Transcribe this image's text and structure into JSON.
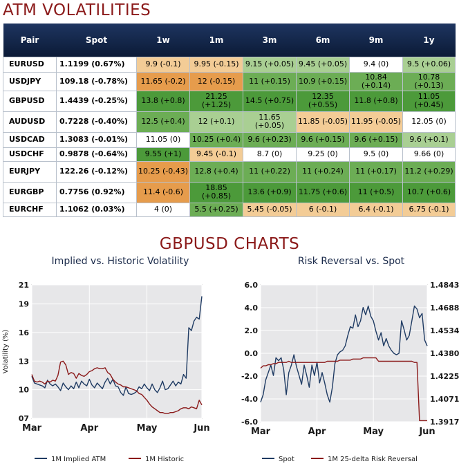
{
  "headings": {
    "atm": "ATM VOLATILITIES",
    "charts": "GBPUSD CHARTS"
  },
  "table": {
    "headers": [
      "Pair",
      "Spot",
      "1w",
      "1m",
      "3m",
      "6m",
      "9m",
      "1y"
    ],
    "colors": {
      "white": "#ffffff",
      "light_green": "#a9cf93",
      "mid_green": "#6cad55",
      "dark_green": "#4c9a3a",
      "light_orange": "#f3cc96",
      "orange": "#e69c4c",
      "header_bg": "#0b1a36"
    },
    "rows": [
      {
        "pair": "EURUSD",
        "spot": "1.1199 (0.67%)",
        "cells": [
          "9.9 (-0.1)",
          "9.95 (-0.15)",
          "9.15 (+0.05)",
          "9.45 (+0.05)",
          "9.4 (0)",
          "9.5 (+0.06)"
        ],
        "shades": [
          "light_orange",
          "light_orange",
          "light_green",
          "light_green",
          "white",
          "light_green"
        ]
      },
      {
        "pair": "USDJPY",
        "spot": "109.18 (-0.78%)",
        "cells": [
          "11.65 (-0.2)",
          "12 (-0.15)",
          "11 (+0.15)",
          "10.9 (+0.15)",
          "10.84 (+0.14)",
          "10.78 (+0.13)"
        ],
        "shades": [
          "orange",
          "orange",
          "mid_green",
          "mid_green",
          "mid_green",
          "mid_green"
        ]
      },
      {
        "pair": "GBPUSD",
        "spot": "1.4439 (-0.25%)",
        "cells": [
          "13.8 (+0.8)",
          "21.25 (+1.25)",
          "14.5 (+0.75)",
          "12.35 (+0.55)",
          "11.8 (+0.8)",
          "11.05 (+0.45)"
        ],
        "shades": [
          "dark_green",
          "dark_green",
          "dark_green",
          "dark_green",
          "dark_green",
          "dark_green"
        ]
      },
      {
        "pair": "AUDUSD",
        "spot": "0.7228 (-0.40%)",
        "cells": [
          "12.5 (+0.4)",
          "12 (+0.1)",
          "11.65 (+0.05)",
          "11.85 (-0.05)",
          "11.95 (-0.05)",
          "12.05 (0)"
        ],
        "shades": [
          "mid_green",
          "light_green",
          "light_green",
          "light_orange",
          "light_orange",
          "white"
        ]
      },
      {
        "pair": "USDCAD",
        "spot": "1.3083 (-0.01%)",
        "cells": [
          "11.05 (0)",
          "10.25 (+0.4)",
          "9.6 (+0.23)",
          "9.6 (+0.15)",
          "9.6 (+0.15)",
          "9.6 (+0.1)"
        ],
        "shades": [
          "white",
          "mid_green",
          "mid_green",
          "mid_green",
          "mid_green",
          "light_green"
        ]
      },
      {
        "pair": "USDCHF",
        "spot": "0.9878 (-0.64%)",
        "cells": [
          "9.55 (+1)",
          "9.45 (-0.1)",
          "8.7 (0)",
          "9.25 (0)",
          "9.5 (0)",
          "9.66 (0)"
        ],
        "shades": [
          "dark_green",
          "light_orange",
          "white",
          "white",
          "white",
          "white"
        ]
      },
      {
        "pair": "EURJPY",
        "spot": "122.26 (-0.12%)",
        "cells": [
          "10.25 (-0.43)",
          "12.8 (+0.4)",
          "11 (+0.22)",
          "11 (+0.24)",
          "11 (+0.17)",
          "11.2 (+0.29)"
        ],
        "shades": [
          "orange",
          "mid_green",
          "mid_green",
          "mid_green",
          "mid_green",
          "mid_green"
        ]
      },
      {
        "pair": "EURGBP",
        "spot": "0.7756 (0.92%)",
        "cells": [
          "11.4 (-0.6)",
          "18.85 (+0.85)",
          "13.6 (+0.9)",
          "11.75 (+0.6)",
          "11 (+0.5)",
          "10.7 (+0.6)"
        ],
        "shades": [
          "orange",
          "dark_green",
          "dark_green",
          "dark_green",
          "dark_green",
          "dark_green"
        ]
      },
      {
        "pair": "EURCHF",
        "spot": "1.1062 (0.03%)",
        "cells": [
          "4 (0)",
          "5.5 (+0.25)",
          "5.45 (-0.05)",
          "6 (-0.1)",
          "6.4 (-0.1)",
          "6.75 (-0.1)"
        ],
        "shades": [
          "white",
          "mid_green",
          "light_orange",
          "light_orange",
          "light_orange",
          "light_orange"
        ]
      }
    ]
  },
  "chart_data": [
    {
      "type": "line",
      "title": "Implied vs. Historic Volatility",
      "ylabel": "Volatility (%)",
      "ylim": [
        7,
        21
      ],
      "yticks": [
        "07",
        "10",
        "13",
        "16",
        "19",
        "21"
      ],
      "ytick_values": [
        7,
        10,
        13,
        16,
        19,
        21
      ],
      "xtick_labels": [
        "Mar",
        "Apr",
        "May",
        "Jun"
      ],
      "xtick_positions": [
        0,
        22,
        44,
        65
      ],
      "grid": true,
      "legend": "bottom",
      "series": [
        {
          "name": "1M Implied ATM",
          "color": "#1f3b63",
          "values": [
            11.4,
            10.7,
            10.6,
            10.5,
            10.4,
            10.2,
            11.0,
            10.6,
            10.4,
            10.6,
            10.3,
            9.9,
            10.7,
            10.3,
            10.0,
            10.4,
            10.1,
            10.8,
            10.2,
            10.9,
            10.6,
            10.4,
            11.1,
            10.5,
            10.2,
            10.7,
            10.4,
            10.1,
            10.8,
            11.2,
            10.6,
            11.1,
            10.4,
            10.3,
            9.7,
            9.4,
            10.3,
            9.6,
            9.5,
            9.6,
            9.8,
            10.3,
            10.1,
            10.6,
            10.2,
            9.9,
            10.6,
            10.0,
            9.7,
            10.2,
            10.9,
            10.0,
            10.1,
            10.5,
            10.9,
            10.4,
            10.8,
            10.6,
            11.6,
            11.2,
            16.5,
            16.2,
            17.2,
            17.6,
            17.4,
            19.8
          ]
        },
        {
          "name": "1M Historic",
          "color": "#8b1a1a",
          "values": [
            11.6,
            10.9,
            10.8,
            10.9,
            10.8,
            10.6,
            10.9,
            10.8,
            11.0,
            10.9,
            11.5,
            12.9,
            13.0,
            12.6,
            11.6,
            11.8,
            11.7,
            11.2,
            11.7,
            11.5,
            11.4,
            11.6,
            11.9,
            12.0,
            12.2,
            12.3,
            12.2,
            12.2,
            12.3,
            11.8,
            11.6,
            11.1,
            10.8,
            10.6,
            10.5,
            10.3,
            10.3,
            10.2,
            10.1,
            10.0,
            9.9,
            9.6,
            9.5,
            9.2,
            8.9,
            8.5,
            8.2,
            8.0,
            7.8,
            7.6,
            7.6,
            7.5,
            7.5,
            7.6,
            7.6,
            7.7,
            7.8,
            8.0,
            8.1,
            8.1,
            8.0,
            8.2,
            8.1,
            8.0,
            8.9,
            8.4
          ]
        }
      ]
    },
    {
      "type": "line",
      "title": "Risk Reversal vs. Spot",
      "ylim": [
        -6,
        6
      ],
      "yticks": [
        "-6.0",
        "-4.0",
        "-2.0",
        "0.0",
        "2.0",
        "4.0",
        "6.0"
      ],
      "ytick_values": [
        -6,
        -4,
        -2,
        0,
        2,
        4,
        6
      ],
      "y2lim": [
        1.3917,
        1.4843
      ],
      "y2ticks": [
        "1.3917",
        "1.4071",
        "1.4225",
        "1.4380",
        "1.4534",
        "1.4688",
        "1.4843"
      ],
      "y2tick_values": [
        1.3917,
        1.4071,
        1.4225,
        1.438,
        1.4534,
        1.4688,
        1.4843
      ],
      "xtick_labels": [
        "Mar",
        "Apr",
        "May",
        "Jun"
      ],
      "xtick_positions": [
        0,
        22,
        44,
        65
      ],
      "grid": true,
      "legend": "bottom",
      "series": [
        {
          "name": "Spot",
          "color": "#1f3b63",
          "axis": "right",
          "values": [
            1.405,
            1.41,
            1.42,
            1.425,
            1.43,
            1.423,
            1.435,
            1.433,
            1.435,
            1.427,
            1.41,
            1.425,
            1.43,
            1.437,
            1.429,
            1.423,
            1.417,
            1.43,
            1.423,
            1.415,
            1.43,
            1.423,
            1.432,
            1.418,
            1.425,
            1.418,
            1.41,
            1.405,
            1.415,
            1.431,
            1.437,
            1.439,
            1.44,
            1.443,
            1.45,
            1.456,
            1.455,
            1.464,
            1.456,
            1.46,
            1.469,
            1.464,
            1.47,
            1.463,
            1.46,
            1.453,
            1.447,
            1.452,
            1.443,
            1.448,
            1.443,
            1.44,
            1.438,
            1.437,
            1.438,
            1.46,
            1.454,
            1.447,
            1.45,
            1.46,
            1.47,
            1.468,
            1.462,
            1.465,
            1.447,
            1.443
          ]
        },
        {
          "name": "1M 25-delta Risk Reversal",
          "color": "#8b1a1a",
          "axis": "left",
          "values": [
            -1.3,
            -1.1,
            -1.1,
            -1.0,
            -1.0,
            -0.9,
            -0.9,
            -0.8,
            -0.8,
            -0.8,
            -0.8,
            -0.7,
            -0.8,
            -0.8,
            -0.8,
            -0.8,
            -0.8,
            -0.8,
            -0.8,
            -0.8,
            -0.8,
            -0.8,
            -0.8,
            -0.8,
            -0.8,
            -0.8,
            -0.7,
            -0.7,
            -0.7,
            -0.7,
            -0.7,
            -0.6,
            -0.6,
            -0.6,
            -0.6,
            -0.6,
            -0.5,
            -0.5,
            -0.5,
            -0.5,
            -0.4,
            -0.4,
            -0.4,
            -0.4,
            -0.4,
            -0.4,
            -0.7,
            -0.7,
            -0.7,
            -0.7,
            -0.7,
            -0.7,
            -0.7,
            -0.7,
            -0.7,
            -0.7,
            -0.7,
            -0.7,
            -0.7,
            -0.7,
            -0.8,
            -0.8,
            -5.9,
            -5.9,
            -5.9,
            -5.9
          ]
        }
      ]
    }
  ]
}
